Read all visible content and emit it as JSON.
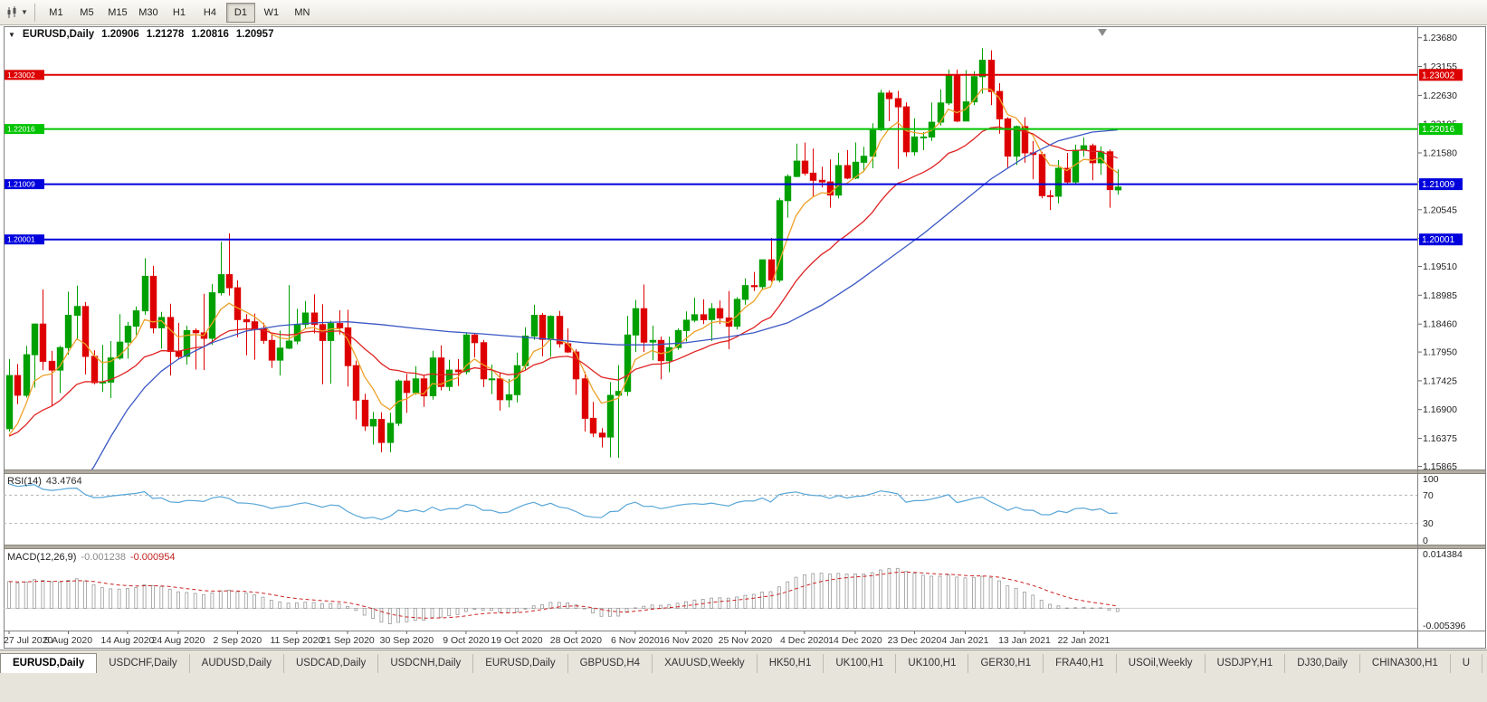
{
  "toolbar": {
    "timeframes": [
      {
        "label": "M1",
        "active": false
      },
      {
        "label": "M5",
        "active": false
      },
      {
        "label": "M15",
        "active": false
      },
      {
        "label": "M30",
        "active": false
      },
      {
        "label": "H1",
        "active": false
      },
      {
        "label": "H4",
        "active": false
      },
      {
        "label": "D1",
        "active": true
      },
      {
        "label": "W1",
        "active": false
      },
      {
        "label": "MN",
        "active": false
      }
    ]
  },
  "chart": {
    "symbol_title": "EURUSD,Daily",
    "ohlc": {
      "open": "1.20906",
      "high": "1.21278",
      "low": "1.20816",
      "close": "1.20957"
    }
  },
  "chart_data": {
    "type": "candlestick",
    "title": "EURUSD,Daily",
    "price_range": {
      "top": 1.23873,
      "bottom": 1.15807
    },
    "colors": {
      "bull": "#00A000",
      "bear": "#DE0000"
    },
    "y_axis_labels": [
      "1.23680",
      "1.23155",
      "1.22630",
      "1.22105",
      "1.21580",
      "1.21055",
      "1.20545",
      "1.20020",
      "1.19510",
      "1.18985",
      "1.18460",
      "1.17950",
      "1.17425",
      "1.16900",
      "1.16375",
      "1.15865"
    ],
    "x_axis_labels": [
      {
        "i": 0,
        "label": "27 Jul 2020"
      },
      {
        "i": 7,
        "label": "5 Aug 2020"
      },
      {
        "i": 14,
        "label": "14 Aug 2020"
      },
      {
        "i": 20,
        "label": "24 Aug 2020"
      },
      {
        "i": 27,
        "label": "2 Sep 2020"
      },
      {
        "i": 34,
        "label": "11 Sep 2020"
      },
      {
        "i": 40,
        "label": "21 Sep 2020"
      },
      {
        "i": 47,
        "label": "30 Sep 2020"
      },
      {
        "i": 54,
        "label": "9 Oct 2020"
      },
      {
        "i": 60,
        "label": "19 Oct 2020"
      },
      {
        "i": 67,
        "label": "28 Oct 2020"
      },
      {
        "i": 74,
        "label": "6 Nov 2020"
      },
      {
        "i": 80,
        "label": "16 Nov 2020"
      },
      {
        "i": 87,
        "label": "25 Nov 2020"
      },
      {
        "i": 94,
        "label": "4 Dec 2020"
      },
      {
        "i": 100,
        "label": "14 Dec 2020"
      },
      {
        "i": 107,
        "label": "23 Dec 2020"
      },
      {
        "i": 113,
        "label": "4 Jan 2021"
      },
      {
        "i": 120,
        "label": "13 Jan 2021"
      },
      {
        "i": 127,
        "label": "22 Jan 2021"
      }
    ],
    "h_lines": [
      {
        "price": 1.23002,
        "label": "1.23002",
        "color": "#dd0000"
      },
      {
        "price": 1.22016,
        "label": "1.22016",
        "color": "#00c400"
      },
      {
        "price": 1.21009,
        "label": "1.21009",
        "color": "#0000dd"
      },
      {
        "price": 1.20001,
        "label": "1.20001",
        "color": "#0000dd"
      }
    ],
    "candles": [
      [
        1.1655,
        1.1782,
        1.165,
        1.1752
      ],
      [
        1.1752,
        1.1773,
        1.17,
        1.1716
      ],
      [
        1.1716,
        1.1806,
        1.1712,
        1.179
      ],
      [
        1.179,
        1.1847,
        1.173,
        1.1846
      ],
      [
        1.1846,
        1.1909,
        1.1762,
        1.1778
      ],
      [
        1.1778,
        1.1797,
        1.1696,
        1.1762
      ],
      [
        1.1762,
        1.1806,
        1.172,
        1.1803
      ],
      [
        1.1803,
        1.1905,
        1.179,
        1.1862
      ],
      [
        1.1862,
        1.1916,
        1.1817,
        1.1878
      ],
      [
        1.1878,
        1.1886,
        1.1754,
        1.1787
      ],
      [
        1.1787,
        1.1798,
        1.1736,
        1.1739
      ],
      [
        1.1739,
        1.1808,
        1.1722,
        1.174
      ],
      [
        1.174,
        1.1815,
        1.1711,
        1.1784
      ],
      [
        1.1784,
        1.1864,
        1.1781,
        1.1813
      ],
      [
        1.1813,
        1.185,
        1.1783,
        1.1842
      ],
      [
        1.1842,
        1.1878,
        1.1826,
        1.187
      ],
      [
        1.187,
        1.1966,
        1.1863,
        1.1933
      ],
      [
        1.1933,
        1.1952,
        1.1829,
        1.1839
      ],
      [
        1.1839,
        1.1868,
        1.1801,
        1.1858
      ],
      [
        1.1858,
        1.1883,
        1.1752,
        1.1796
      ],
      [
        1.1796,
        1.1848,
        1.1783,
        1.1787
      ],
      [
        1.1787,
        1.1843,
        1.1772,
        1.1834
      ],
      [
        1.1834,
        1.1838,
        1.1763,
        1.183
      ],
      [
        1.183,
        1.1901,
        1.1762,
        1.182
      ],
      [
        1.182,
        1.1919,
        1.1808,
        1.1903
      ],
      [
        1.1903,
        1.1996,
        1.1898,
        1.1936
      ],
      [
        1.1936,
        1.2011,
        1.1898,
        1.1912
      ],
      [
        1.1912,
        1.1926,
        1.1822,
        1.1854
      ],
      [
        1.1854,
        1.1864,
        1.1789,
        1.185
      ],
      [
        1.185,
        1.1865,
        1.1781,
        1.1838
      ],
      [
        1.1838,
        1.1848,
        1.181,
        1.1816
      ],
      [
        1.1816,
        1.1827,
        1.1766,
        1.178
      ],
      [
        1.178,
        1.1834,
        1.1752,
        1.1802
      ],
      [
        1.1802,
        1.1917,
        1.18,
        1.1815
      ],
      [
        1.1815,
        1.1874,
        1.1809,
        1.1845
      ],
      [
        1.1845,
        1.1888,
        1.1838,
        1.1866
      ],
      [
        1.1866,
        1.19,
        1.1829,
        1.1845
      ],
      [
        1.1845,
        1.1882,
        1.1736,
        1.1816
      ],
      [
        1.1816,
        1.1852,
        1.1737,
        1.1847
      ],
      [
        1.1847,
        1.1871,
        1.1827,
        1.1839
      ],
      [
        1.1839,
        1.1872,
        1.1732,
        1.177
      ],
      [
        1.177,
        1.1779,
        1.1672,
        1.1707
      ],
      [
        1.1707,
        1.1719,
        1.1651,
        1.166
      ],
      [
        1.166,
        1.1686,
        1.1626,
        1.1672
      ],
      [
        1.1672,
        1.1685,
        1.1612,
        1.163
      ],
      [
        1.163,
        1.1684,
        1.1612,
        1.1665
      ],
      [
        1.1665,
        1.1745,
        1.166,
        1.1742
      ],
      [
        1.1742,
        1.1755,
        1.1684,
        1.1721
      ],
      [
        1.1721,
        1.1769,
        1.1717,
        1.1746
      ],
      [
        1.1746,
        1.1752,
        1.1695,
        1.1715
      ],
      [
        1.1715,
        1.1797,
        1.1708,
        1.1784
      ],
      [
        1.1784,
        1.1807,
        1.1725,
        1.1732
      ],
      [
        1.1732,
        1.1781,
        1.1724,
        1.1762
      ],
      [
        1.1762,
        1.1782,
        1.1733,
        1.1759
      ],
      [
        1.1759,
        1.1831,
        1.1754,
        1.1826
      ],
      [
        1.1826,
        1.1829,
        1.1785,
        1.1812
      ],
      [
        1.1812,
        1.1817,
        1.1731,
        1.1746
      ],
      [
        1.1746,
        1.1772,
        1.1718,
        1.1746
      ],
      [
        1.1746,
        1.1758,
        1.1688,
        1.1708
      ],
      [
        1.1708,
        1.1746,
        1.1694,
        1.1717
      ],
      [
        1.1717,
        1.1794,
        1.1703,
        1.177
      ],
      [
        1.177,
        1.184,
        1.1762,
        1.1824
      ],
      [
        1.1824,
        1.1881,
        1.1817,
        1.1862
      ],
      [
        1.1862,
        1.1866,
        1.1787,
        1.1818
      ],
      [
        1.1818,
        1.1862,
        1.1786,
        1.186
      ],
      [
        1.186,
        1.187,
        1.1803,
        1.181
      ],
      [
        1.181,
        1.1838,
        1.1793,
        1.1795
      ],
      [
        1.1795,
        1.18,
        1.1717,
        1.1746
      ],
      [
        1.1746,
        1.1759,
        1.165,
        1.1674
      ],
      [
        1.1674,
        1.1704,
        1.164,
        1.1647
      ],
      [
        1.1647,
        1.1656,
        1.1621,
        1.164
      ],
      [
        1.164,
        1.174,
        1.1603,
        1.1716
      ],
      [
        1.1716,
        1.1771,
        1.1602,
        1.1723
      ],
      [
        1.1723,
        1.1861,
        1.1715,
        1.1826
      ],
      [
        1.1826,
        1.189,
        1.1795,
        1.1874
      ],
      [
        1.1874,
        1.1918,
        1.1795,
        1.1813
      ],
      [
        1.1813,
        1.1843,
        1.178,
        1.1816
      ],
      [
        1.1816,
        1.1823,
        1.1745,
        1.1779
      ],
      [
        1.1779,
        1.1823,
        1.1758,
        1.1803
      ],
      [
        1.1803,
        1.1838,
        1.1799,
        1.1834
      ],
      [
        1.1834,
        1.1869,
        1.1814,
        1.1853
      ],
      [
        1.1853,
        1.1894,
        1.1849,
        1.1863
      ],
      [
        1.1863,
        1.1891,
        1.1846,
        1.1854
      ],
      [
        1.1854,
        1.1884,
        1.1815,
        1.1874
      ],
      [
        1.1874,
        1.1889,
        1.1846,
        1.1857
      ],
      [
        1.1857,
        1.1906,
        1.18,
        1.1842
      ],
      [
        1.1842,
        1.1895,
        1.1836,
        1.1891
      ],
      [
        1.1891,
        1.1929,
        1.1881,
        1.1916
      ],
      [
        1.1916,
        1.1941,
        1.1906,
        1.1914
      ],
      [
        1.1914,
        1.1963,
        1.1909,
        1.1963
      ],
      [
        1.1963,
        1.2003,
        1.1923,
        1.1926
      ],
      [
        1.1926,
        1.2076,
        1.1922,
        1.2071
      ],
      [
        1.2071,
        1.2119,
        1.204,
        1.2115
      ],
      [
        1.2115,
        1.2175,
        1.2114,
        1.2143
      ],
      [
        1.2143,
        1.2177,
        1.2117,
        1.2121
      ],
      [
        1.2121,
        1.2166,
        1.2078,
        1.2108
      ],
      [
        1.2108,
        1.2133,
        1.2095,
        1.2105
      ],
      [
        1.2105,
        1.2146,
        1.2058,
        1.2081
      ],
      [
        1.2081,
        1.2158,
        1.2075,
        1.2135
      ],
      [
        1.2135,
        1.2163,
        1.211,
        1.2112
      ],
      [
        1.2112,
        1.2177,
        1.211,
        1.2141
      ],
      [
        1.2141,
        1.2169,
        1.2123,
        1.2152
      ],
      [
        1.2152,
        1.2212,
        1.213,
        1.22
      ],
      [
        1.22,
        1.2273,
        1.2198,
        1.2267
      ],
      [
        1.2267,
        1.2272,
        1.2216,
        1.2257
      ],
      [
        1.2257,
        1.2271,
        1.2129,
        1.2242
      ],
      [
        1.2242,
        1.225,
        1.2151,
        1.216
      ],
      [
        1.216,
        1.2221,
        1.2153,
        1.2187
      ],
      [
        1.2187,
        1.2196,
        1.2163,
        1.2187
      ],
      [
        1.2187,
        1.225,
        1.218,
        1.2214
      ],
      [
        1.2214,
        1.2274,
        1.2208,
        1.2249
      ],
      [
        1.2249,
        1.231,
        1.2245,
        1.2299
      ],
      [
        1.2299,
        1.231,
        1.2214,
        1.2216
      ],
      [
        1.2216,
        1.2309,
        1.2216,
        1.2251
      ],
      [
        1.2251,
        1.2307,
        1.2245,
        1.2297
      ],
      [
        1.2297,
        1.2349,
        1.2266,
        1.2327
      ],
      [
        1.2327,
        1.2345,
        1.2245,
        1.227
      ],
      [
        1.227,
        1.2285,
        1.2193,
        1.222
      ],
      [
        1.222,
        1.2223,
        1.2131,
        1.2152
      ],
      [
        1.2152,
        1.2208,
        1.2136,
        1.2206
      ],
      [
        1.2206,
        1.2223,
        1.214,
        1.2158
      ],
      [
        1.2158,
        1.218,
        1.211,
        1.2155
      ],
      [
        1.2155,
        1.216,
        1.2075,
        1.208
      ],
      [
        1.208,
        1.209,
        1.2054,
        1.2079
      ],
      [
        1.2079,
        1.2145,
        1.2066,
        1.213
      ],
      [
        1.213,
        1.2158,
        1.2101,
        1.2105
      ],
      [
        1.2105,
        1.2173,
        1.2102,
        1.2163
      ],
      [
        1.2163,
        1.2186,
        1.2151,
        1.2171
      ],
      [
        1.2171,
        1.2175,
        1.2108,
        1.214
      ],
      [
        1.214,
        1.217,
        1.2118,
        1.216
      ],
      [
        1.216,
        1.2164,
        1.2058,
        1.2091
      ],
      [
        1.20906,
        1.21278,
        1.20816,
        1.20957
      ]
    ],
    "ma_lines": [
      {
        "name": "ma-fast",
        "color": "#EDA128",
        "type": "ema",
        "period": 6,
        "seed": 1.16
      },
      {
        "name": "ma-mid",
        "color": "#E02222",
        "type": "ema",
        "period": 20,
        "seed": 1.163
      },
      {
        "name": "ma-slow",
        "color": "#3A57C4",
        "type": "points",
        "points": [
          [
            8,
            1.1545
          ],
          [
            10,
            1.1585
          ],
          [
            12,
            1.164
          ],
          [
            14,
            1.169
          ],
          [
            16,
            1.173
          ],
          [
            18,
            1.176
          ],
          [
            20,
            1.1782
          ],
          [
            24,
            1.1812
          ],
          [
            28,
            1.1833
          ],
          [
            32,
            1.1843
          ],
          [
            36,
            1.1848
          ],
          [
            40,
            1.185
          ],
          [
            44,
            1.1845
          ],
          [
            48,
            1.1838
          ],
          [
            52,
            1.1832
          ],
          [
            56,
            1.1828
          ],
          [
            60,
            1.1823
          ],
          [
            64,
            1.1818
          ],
          [
            68,
            1.1812
          ],
          [
            72,
            1.1808
          ],
          [
            76,
            1.1808
          ],
          [
            80,
            1.1812
          ],
          [
            84,
            1.182
          ],
          [
            88,
            1.183
          ],
          [
            92,
            1.1848
          ],
          [
            96,
            1.188
          ],
          [
            100,
            1.192
          ],
          [
            104,
            1.1965
          ],
          [
            108,
            1.201
          ],
          [
            112,
            1.206
          ],
          [
            116,
            1.211
          ],
          [
            120,
            1.215
          ],
          [
            124,
            1.218
          ],
          [
            128,
            1.2196
          ],
          [
            131,
            1.22
          ]
        ]
      }
    ],
    "rsi": {
      "name": "RSI(14)",
      "value": "43.4764",
      "color": "#58A6D8",
      "period": 14,
      "seed_gain": 0.0055,
      "seed_loss": 0.0009,
      "levels": [
        {
          "v": 100,
          "label": "100",
          "dashed": false
        },
        {
          "v": 70,
          "label": "70",
          "dashed": true
        },
        {
          "v": 30,
          "label": "30",
          "dashed": true
        },
        {
          "v": 0,
          "label": "0",
          "dashed": false
        }
      ]
    },
    "macd": {
      "name": "MACD(12,26,9)",
      "value_main": "-0.001238",
      "value_signal": "-0.000954",
      "axis_max_label": "0.014384",
      "axis_min_label": "-0.005396",
      "range": {
        "min": -0.005396,
        "max": 0.014384
      },
      "fast": 12,
      "slow": 26,
      "signal": 9,
      "seed_fast": 1.169,
      "seed_slow": 1.1625,
      "seed_signal": 0.0065,
      "bar_color": "#9a9a9a",
      "signal_color": "#cc2222"
    }
  },
  "tabs": [
    {
      "label": "EURUSD,Daily",
      "active": true
    },
    {
      "label": "USDCHF,Daily",
      "active": false
    },
    {
      "label": "AUDUSD,Daily",
      "active": false
    },
    {
      "label": "USDCAD,Daily",
      "active": false
    },
    {
      "label": "USDCNH,Daily",
      "active": false
    },
    {
      "label": "EURUSD,Daily",
      "active": false
    },
    {
      "label": "GBPUSD,H4",
      "active": false
    },
    {
      "label": "XAUUSD,Weekly",
      "active": false
    },
    {
      "label": "HK50,H1",
      "active": false
    },
    {
      "label": "UK100,H1",
      "active": false
    },
    {
      "label": "UK100,H1",
      "active": false
    },
    {
      "label": "GER30,H1",
      "active": false
    },
    {
      "label": "FRA40,H1",
      "active": false
    },
    {
      "label": "USOil,Weekly",
      "active": false
    },
    {
      "label": "USDJPY,H1",
      "active": false
    },
    {
      "label": "DJ30,Daily",
      "active": false
    },
    {
      "label": "CHINA300,H1",
      "active": false
    },
    {
      "label": "U",
      "active": false
    }
  ]
}
